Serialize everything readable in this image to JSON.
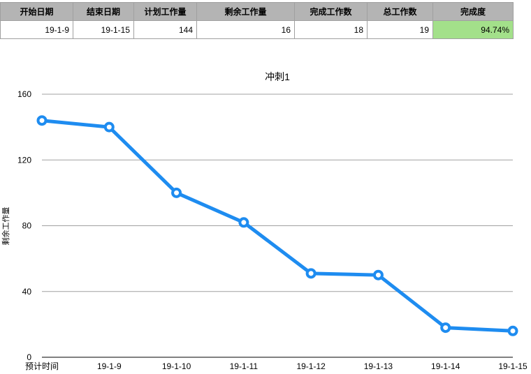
{
  "summary": {
    "headers": [
      "开始日期",
      "结束日期",
      "计划工作量",
      "剩余工作量",
      "完成工作数",
      "总工作数",
      "完成度"
    ],
    "values": [
      "19-1-9",
      "19-1-15",
      "144",
      "16",
      "18",
      "19",
      "94.74%"
    ]
  },
  "chart_data": {
    "type": "line",
    "title": "冲刺1",
    "xlabel": "",
    "ylabel": "剩余工作量",
    "categories": [
      "预计时间",
      "19-1-9",
      "19-1-10",
      "19-1-11",
      "19-1-12",
      "19-1-13",
      "19-1-14",
      "19-1-15"
    ],
    "series": [
      {
        "values": [
          144,
          140,
          100,
          82,
          51,
          50,
          18,
          16
        ],
        "color": "#1e8cf0"
      }
    ],
    "yticks": [
      0,
      40,
      80,
      120,
      160
    ],
    "ylim": [
      0,
      160
    ],
    "grid": true,
    "legend": "none"
  },
  "colors": {
    "header_bg": "#b4b4b4",
    "highlight_cell": "#a3e08a",
    "line": "#1e8cf0",
    "grid": "#a0a0a0"
  }
}
